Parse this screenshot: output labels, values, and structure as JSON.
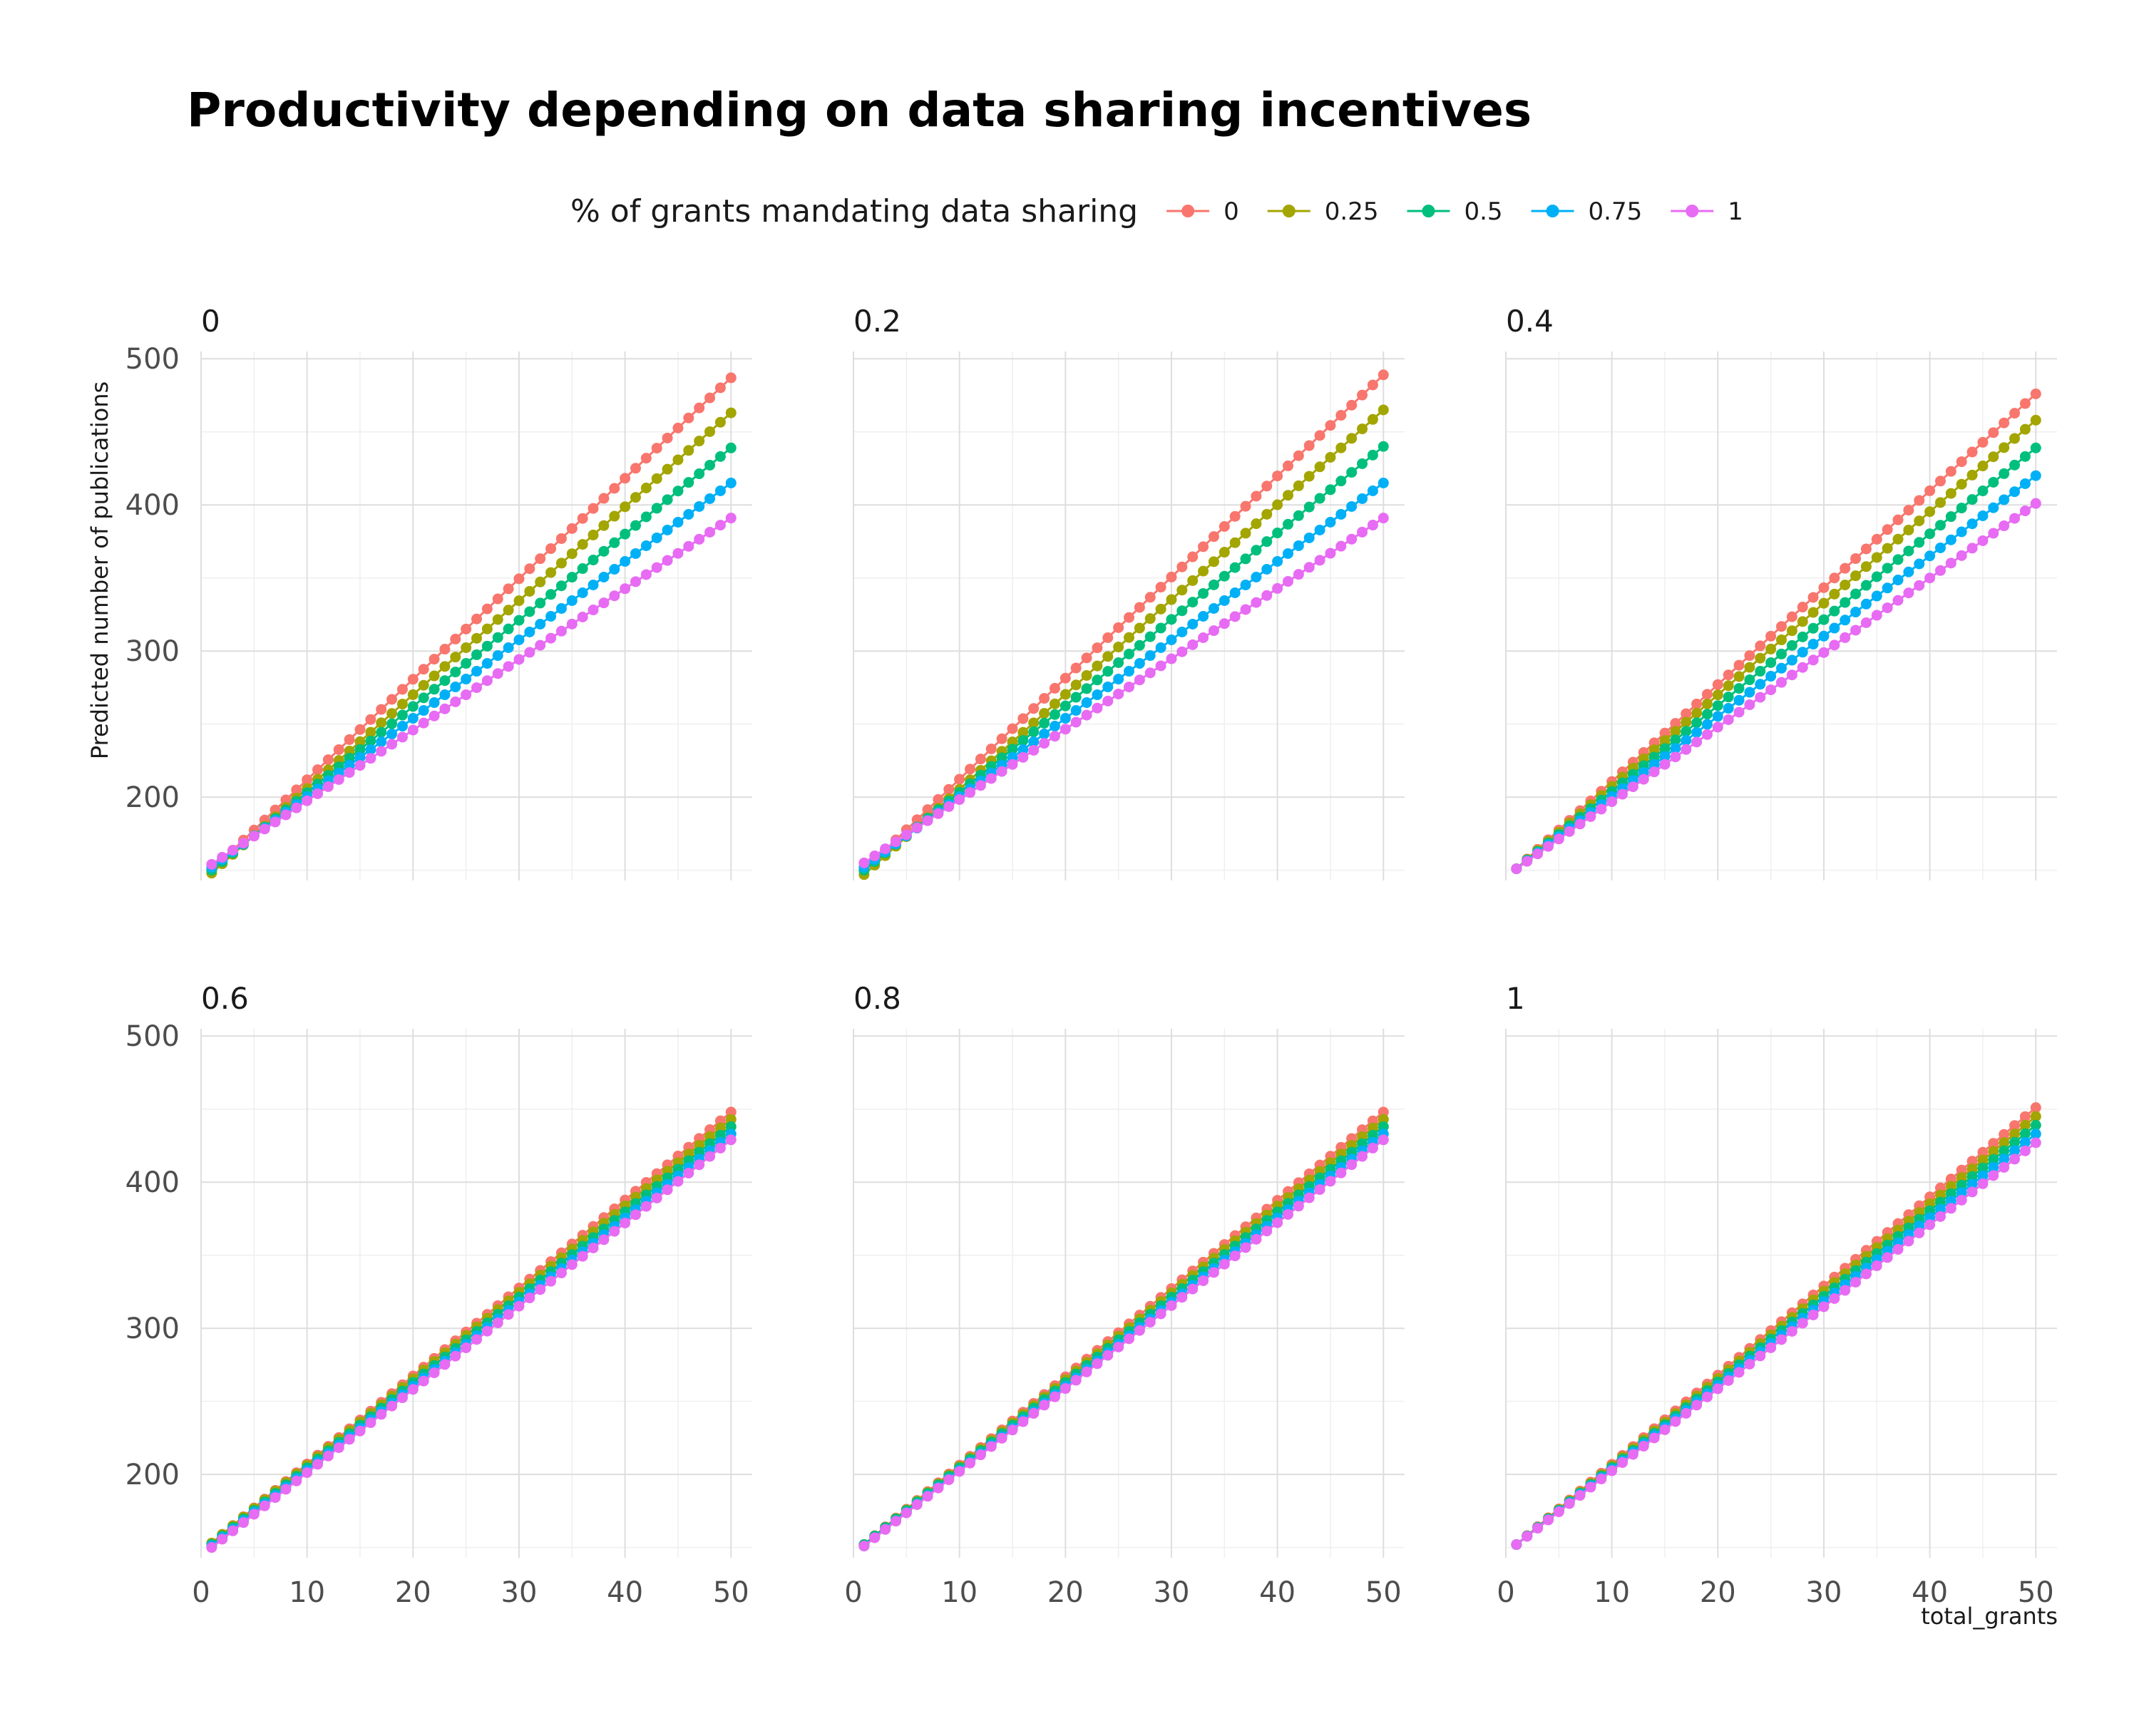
{
  "chart_data": {
    "type": "scatter",
    "title": "Productivity depending on data sharing incentives",
    "legend": {
      "title": "% of grants mandating data sharing",
      "position": "top",
      "entries": [
        {
          "label": "0",
          "color": "#F8766D"
        },
        {
          "label": "0.25",
          "color": "#A3A500"
        },
        {
          "label": "0.5",
          "color": "#00BF7D"
        },
        {
          "label": "0.75",
          "color": "#00B0F6"
        },
        {
          "label": "1",
          "color": "#E76BF3"
        }
      ]
    },
    "xlabel": "total_grants",
    "ylabel": "Predicted number of publications",
    "xlim": [
      0,
      52
    ],
    "ylim": [
      143,
      505
    ],
    "x_ticks": [
      0,
      10,
      20,
      30,
      40,
      50
    ],
    "y_ticks": [
      200,
      300,
      400,
      500
    ],
    "grid": true,
    "x": {
      "start": 1,
      "end": 50,
      "step": 1
    },
    "series_note": "Each series is linear in total_grants; points at x = 1..50",
    "panels": [
      {
        "label": "0",
        "series": [
          {
            "name": "0",
            "y_start": 150,
            "y_end": 487
          },
          {
            "name": "0.25",
            "y_start": 148,
            "y_end": 463
          },
          {
            "name": "0.5",
            "y_start": 150,
            "y_end": 439
          },
          {
            "name": "0.75",
            "y_start": 152,
            "y_end": 415
          },
          {
            "name": "1",
            "y_start": 154,
            "y_end": 391
          }
        ]
      },
      {
        "label": "0.2",
        "series": [
          {
            "name": "0",
            "y_start": 150,
            "y_end": 489
          },
          {
            "name": "0.25",
            "y_start": 147,
            "y_end": 465
          },
          {
            "name": "0.5",
            "y_start": 150,
            "y_end": 440
          },
          {
            "name": "0.75",
            "y_start": 152,
            "y_end": 415
          },
          {
            "name": "1",
            "y_start": 155,
            "y_end": 391
          }
        ]
      },
      {
        "label": "0.4",
        "series": [
          {
            "name": "0",
            "y_start": 151,
            "y_end": 476
          },
          {
            "name": "0.25",
            "y_start": 151,
            "y_end": 458
          },
          {
            "name": "0.5",
            "y_start": 151,
            "y_end": 439
          },
          {
            "name": "0.75",
            "y_start": 151,
            "y_end": 420
          },
          {
            "name": "1",
            "y_start": 151,
            "y_end": 401
          }
        ]
      },
      {
        "label": "0.6",
        "series": [
          {
            "name": "0",
            "y_start": 153,
            "y_end": 448
          },
          {
            "name": "0.25",
            "y_start": 153,
            "y_end": 443
          },
          {
            "name": "0.5",
            "y_start": 152,
            "y_end": 438
          },
          {
            "name": "0.75",
            "y_start": 151,
            "y_end": 433
          },
          {
            "name": "1",
            "y_start": 150,
            "y_end": 429
          }
        ]
      },
      {
        "label": "0.8",
        "series": [
          {
            "name": "0",
            "y_start": 152,
            "y_end": 448
          },
          {
            "name": "0.25",
            "y_start": 152,
            "y_end": 443
          },
          {
            "name": "0.5",
            "y_start": 152,
            "y_end": 438
          },
          {
            "name": "0.75",
            "y_start": 151,
            "y_end": 433
          },
          {
            "name": "1",
            "y_start": 151,
            "y_end": 429
          }
        ]
      },
      {
        "label": "1",
        "series": [
          {
            "name": "0",
            "y_start": 152,
            "y_end": 451
          },
          {
            "name": "0.25",
            "y_start": 152,
            "y_end": 445
          },
          {
            "name": "0.5",
            "y_start": 152,
            "y_end": 439
          },
          {
            "name": "0.75",
            "y_start": 152,
            "y_end": 433
          },
          {
            "name": "1",
            "y_start": 152,
            "y_end": 427
          }
        ]
      }
    ]
  }
}
